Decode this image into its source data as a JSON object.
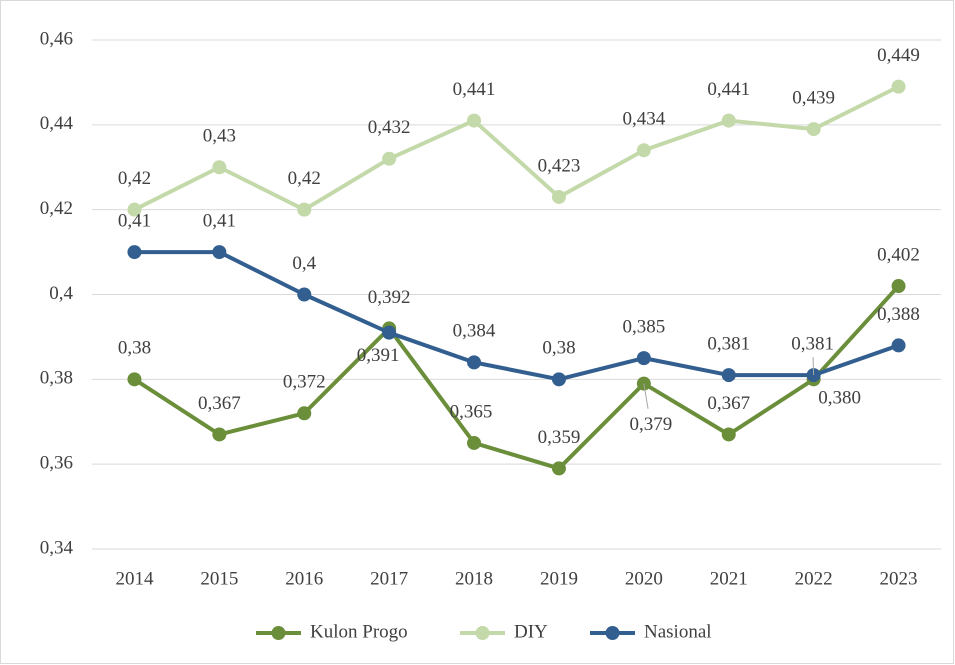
{
  "chart_data": {
    "type": "line",
    "categories": [
      "2014",
      "2015",
      "2016",
      "2017",
      "2018",
      "2019",
      "2020",
      "2021",
      "2022",
      "2023"
    ],
    "series": [
      {
        "name": "Kulon Progo",
        "color": "#6b8e3a",
        "values": [
          0.38,
          0.367,
          0.372,
          0.392,
          0.365,
          0.359,
          0.379,
          0.367,
          0.38,
          0.402
        ],
        "value_labels": [
          "0,38",
          "0,367",
          "0,372",
          "0,392",
          "0,365",
          "0,359",
          "0,379",
          "0,367",
          "0,380",
          "0,402"
        ]
      },
      {
        "name": "DIY",
        "color": "#c4d9a9",
        "values": [
          0.42,
          0.43,
          0.42,
          0.432,
          0.441,
          0.423,
          0.434,
          0.441,
          0.439,
          0.449
        ],
        "value_labels": [
          "0,42",
          "0,43",
          "0,42",
          "0,432",
          "0,441",
          "0,423",
          "0,434",
          "0,441",
          "0,439",
          "0,449"
        ]
      },
      {
        "name": "Nasional",
        "color": "#325f8f",
        "values": [
          0.41,
          0.41,
          0.4,
          0.391,
          0.384,
          0.38,
          0.385,
          0.381,
          0.381,
          0.388
        ],
        "value_labels": [
          "0,41",
          "0,41",
          "0,4",
          "0,391",
          "0,384",
          "0,38",
          "0,385",
          "0,381",
          "0,381",
          "0,388"
        ]
      }
    ],
    "ylim": [
      0.34,
      0.46
    ],
    "yticks": [
      {
        "value": 0.34,
        "label": "0,34"
      },
      {
        "value": 0.36,
        "label": "0,36"
      },
      {
        "value": 0.38,
        "label": "0,38"
      },
      {
        "value": 0.4,
        "label": "0,4"
      },
      {
        "value": 0.42,
        "label": "0,42"
      },
      {
        "value": 0.44,
        "label": "0,44"
      },
      {
        "value": 0.46,
        "label": "0,46"
      }
    ],
    "grid": true,
    "legend": "bottom"
  }
}
